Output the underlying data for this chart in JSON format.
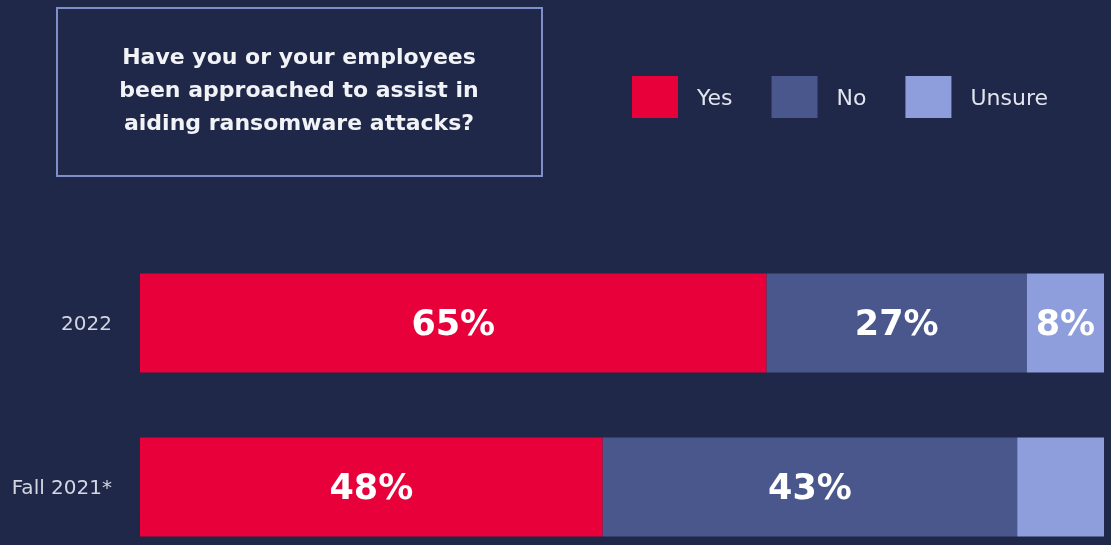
{
  "chart_data": {
    "type": "bar",
    "orientation": "horizontal",
    "stacked": true,
    "title": "Have you or your employees been approached to assist in aiding ransomware attacks?",
    "categories": [
      "2022",
      "Fall 2021*"
    ],
    "series": [
      {
        "name": "Yes",
        "color": "#e8003a",
        "values": [
          65,
          48
        ],
        "value_labels": [
          "65%",
          "48%"
        ]
      },
      {
        "name": "No",
        "color": "#4a578c",
        "values": [
          27,
          43
        ],
        "value_labels": [
          "27%",
          "43%"
        ]
      },
      {
        "name": "Unsure",
        "color": "#8e9edc",
        "values": [
          8,
          9
        ],
        "value_labels": [
          "8%",
          null
        ]
      }
    ],
    "legend": "top right",
    "tick_labels": "y"
  }
}
